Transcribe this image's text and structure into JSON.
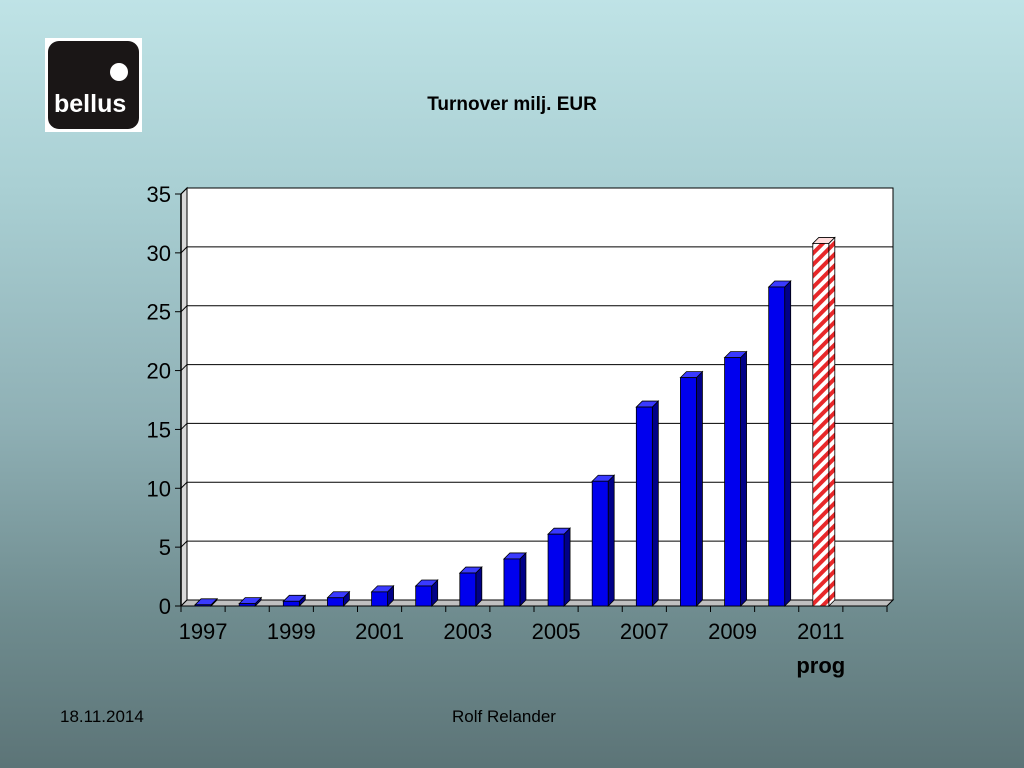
{
  "logo": {
    "text": "bellus"
  },
  "footer": {
    "date": "18.11.2014",
    "author": "Rolf Relander"
  },
  "colors": {
    "bar": "#0000ee",
    "bar_side": "#000088",
    "forecast_stripe": "#e8282a"
  },
  "chart_data": {
    "type": "bar",
    "title": "Turnover milj. EUR",
    "categories": [
      "1997",
      "1998",
      "1999",
      "2000",
      "2001",
      "2002",
      "2003",
      "2004",
      "2005",
      "2006",
      "2007",
      "2008",
      "2009",
      "2010",
      "2011",
      "2012"
    ],
    "values": [
      0.1,
      0.2,
      0.4,
      0.7,
      1.2,
      1.7,
      2.8,
      4.0,
      6.1,
      10.6,
      16.9,
      19.4,
      21.1,
      27.1,
      30.8,
      null
    ],
    "forecast_category": "2011",
    "tick_labels": [
      {
        "category": "1997",
        "text": "1997"
      },
      {
        "category": "1999",
        "text": "1999"
      },
      {
        "category": "2001",
        "text": "2001"
      },
      {
        "category": "2003",
        "text": "2003"
      },
      {
        "category": "2005",
        "text": "2005"
      },
      {
        "category": "2007",
        "text": "2007"
      },
      {
        "category": "2009",
        "text": "2009"
      },
      {
        "category": "2011",
        "text": "2011"
      }
    ],
    "tick_sublabel": {
      "category": "2011",
      "text": "prog"
    },
    "yticks": [
      0,
      5,
      10,
      15,
      20,
      25,
      30,
      35
    ],
    "ylim": [
      0,
      35
    ],
    "grid": true,
    "legend": "none"
  }
}
